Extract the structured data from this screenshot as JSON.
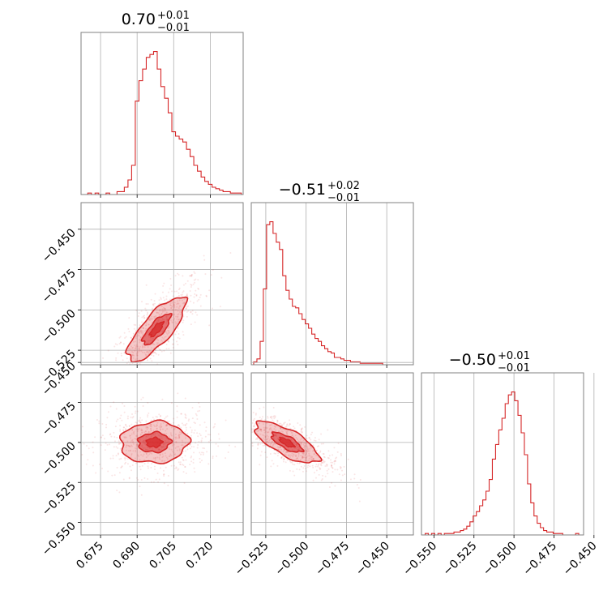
{
  "chart_data": {
    "type": "corner",
    "color": "#d62728",
    "grid": true,
    "parameters": [
      {
        "median": 0.7,
        "plus": 0.01,
        "minus": 0.01,
        "title_main": "0.70",
        "title_sup": "+0.01",
        "title_sub": "−0.01",
        "range": [
          0.667,
          0.7335
        ],
        "ticks": [
          0.675,
          0.69,
          0.705,
          0.72
        ],
        "tick_labels": [
          "0.675",
          "0.690",
          "0.705",
          "0.720"
        ]
      },
      {
        "median": -0.51,
        "plus": 0.02,
        "minus": 0.01,
        "title_main": "−0.51",
        "title_sup": "+0.02",
        "title_sub": "−0.01",
        "range": [
          -0.534,
          -0.4335
        ],
        "ticks": [
          -0.525,
          -0.5,
          -0.475,
          -0.45
        ],
        "tick_labels": [
          "−0.525",
          "−0.500",
          "−0.475",
          "−0.450"
        ]
      },
      {
        "median": -0.5,
        "plus": 0.01,
        "minus": 0.01,
        "title_main": "−0.50",
        "title_sup": "+0.01",
        "title_sub": "−0.01",
        "range": [
          -0.5578,
          -0.4565
        ],
        "ticks": [
          -0.55,
          -0.525,
          -0.5,
          -0.475,
          -0.45
        ],
        "tick_labels": [
          "−0.550",
          "−0.525",
          "−0.500",
          "−0.475",
          "−0.450"
        ]
      }
    ],
    "histograms": [
      {
        "x": [
          0.669,
          0.6705,
          0.672,
          0.6735,
          0.675,
          0.6765,
          0.678,
          0.6795,
          0.681,
          0.6825,
          0.684,
          0.6855,
          0.687,
          0.6885,
          0.69,
          0.6915,
          0.693,
          0.6945,
          0.696,
          0.6975,
          0.699,
          0.7005,
          0.702,
          0.7035,
          0.705,
          0.7065,
          0.708,
          0.7095,
          0.711,
          0.7125,
          0.714,
          0.7155,
          0.717,
          0.7185,
          0.72,
          0.7215,
          0.723,
          0.7245,
          0.726,
          0.7275,
          0.729,
          0.7305,
          0.732
        ],
        "y": [
          0,
          0.01,
          0,
          0.01,
          0,
          0,
          0.01,
          0,
          0,
          0.02,
          0.02,
          0.05,
          0.1,
          0.2,
          0.64,
          0.78,
          0.86,
          0.94,
          0.96,
          0.98,
          0.86,
          0.74,
          0.66,
          0.56,
          0.43,
          0.4,
          0.38,
          0.36,
          0.31,
          0.26,
          0.2,
          0.16,
          0.12,
          0.09,
          0.07,
          0.05,
          0.04,
          0.03,
          0.02,
          0.02,
          0.01,
          0.01,
          0.01
        ]
      },
      {
        "x": [
          -0.5315,
          -0.5295,
          -0.5275,
          -0.5255,
          -0.5235,
          -0.5215,
          -0.5195,
          -0.5175,
          -0.5155,
          -0.5135,
          -0.5115,
          -0.5095,
          -0.5075,
          -0.5055,
          -0.5035,
          -0.5015,
          -0.4995,
          -0.4975,
          -0.4955,
          -0.4935,
          -0.4915,
          -0.4895,
          -0.4875,
          -0.4855,
          -0.4835,
          -0.4815,
          -0.4795,
          -0.4775,
          -0.4755,
          -0.4735,
          -0.4715,
          -0.4695,
          -0.4675,
          -0.4655,
          -0.4635,
          -0.4615,
          -0.4595,
          -0.4575,
          -0.4555,
          -0.4535,
          -0.4515,
          -0.4495,
          -0.4475,
          -0.4455,
          -0.4435,
          -0.4415,
          -0.4395,
          -0.4375,
          -0.4355
        ],
        "y": [
          0.02,
          0.04,
          0.16,
          0.52,
          0.96,
          0.98,
          0.9,
          0.84,
          0.79,
          0.61,
          0.51,
          0.45,
          0.4,
          0.39,
          0.35,
          0.31,
          0.28,
          0.25,
          0.21,
          0.18,
          0.16,
          0.13,
          0.11,
          0.09,
          0.08,
          0.05,
          0.05,
          0.04,
          0.03,
          0.03,
          0.02,
          0.02,
          0.02,
          0.01,
          0.01,
          0.01,
          0.01,
          0.01,
          0.01,
          0.01,
          0.0,
          0.0,
          0.0,
          0.0,
          0.0,
          0.0,
          0.0,
          0.0,
          0.0
        ]
      },
      {
        "x": [
          -0.5565,
          -0.5545,
          -0.5525,
          -0.5505,
          -0.5485,
          -0.5465,
          -0.5445,
          -0.5425,
          -0.5405,
          -0.5385,
          -0.5365,
          -0.5345,
          -0.5325,
          -0.5305,
          -0.5285,
          -0.5265,
          -0.5245,
          -0.5225,
          -0.5205,
          -0.5185,
          -0.5165,
          -0.5145,
          -0.5125,
          -0.5105,
          -0.5085,
          -0.5065,
          -0.5045,
          -0.5025,
          -0.5005,
          -0.4985,
          -0.4965,
          -0.4945,
          -0.4925,
          -0.4905,
          -0.4885,
          -0.4865,
          -0.4845,
          -0.4825,
          -0.4805,
          -0.4785,
          -0.4765,
          -0.4745,
          -0.4725,
          -0.4705,
          -0.4685,
          -0.4665,
          -0.4645,
          -0.4625,
          -0.4605,
          -0.4585
        ],
        "y": [
          0,
          0.01,
          0,
          0.01,
          0,
          0.01,
          0,
          0.01,
          0.01,
          0.01,
          0.02,
          0.02,
          0.03,
          0.04,
          0.06,
          0.09,
          0.13,
          0.16,
          0.2,
          0.24,
          0.3,
          0.38,
          0.52,
          0.62,
          0.72,
          0.8,
          0.9,
          0.96,
          0.98,
          0.92,
          0.82,
          0.7,
          0.55,
          0.35,
          0.22,
          0.13,
          0.08,
          0.05,
          0.03,
          0.02,
          0.02,
          0.01,
          0.01,
          0.01,
          0.0,
          0.0,
          0.0,
          0.0,
          0.01,
          0.0
        ]
      }
    ],
    "joint": [
      {
        "pair": [
          0,
          1
        ],
        "mean": [
          0.698,
          -0.512
        ],
        "sd": [
          0.006,
          0.01
        ],
        "rho": 0.78,
        "n": 700
      },
      {
        "pair": [
          0,
          2
        ],
        "mean": [
          0.697,
          -0.5
        ],
        "sd": [
          0.007,
          0.0065
        ],
        "rho": 0.05,
        "n": 700
      },
      {
        "pair": [
          1,
          2
        ],
        "mean": [
          -0.512,
          -0.5
        ],
        "sd": [
          0.01,
          0.0065
        ],
        "rho": -0.72,
        "n": 700
      }
    ],
    "contour_levels": [
      0.39,
      0.86
    ]
  }
}
